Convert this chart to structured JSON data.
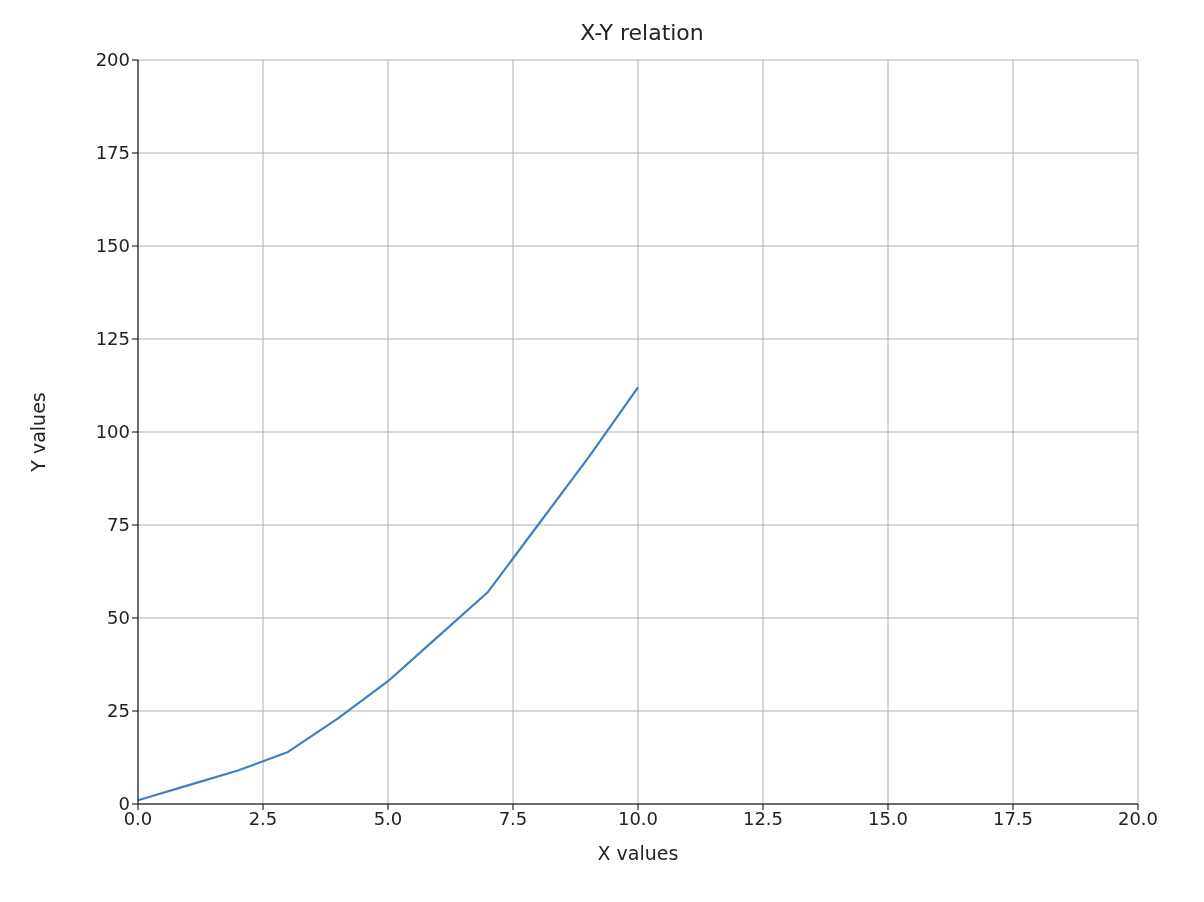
{
  "chart_data": {
    "type": "line",
    "title": "X-Y relation",
    "xlabel": "X values",
    "ylabel": "Y values",
    "x": [
      0,
      1,
      2,
      3,
      4,
      5,
      6,
      7,
      8,
      9,
      10
    ],
    "series": [
      {
        "color": "#3f7fbf",
        "values": [
          1,
          5,
          9,
          14,
          23,
          33,
          45,
          57,
          75,
          93,
          112
        ]
      }
    ],
    "xlim": [
      0,
      20
    ],
    "xticks": [
      {
        "value": 0,
        "label": "0.0"
      },
      {
        "value": 2.5,
        "label": "2.5"
      },
      {
        "value": 5,
        "label": "5.0"
      },
      {
        "value": 7.5,
        "label": "7.5"
      },
      {
        "value": 10,
        "label": "10.0"
      },
      {
        "value": 12.5,
        "label": "12.5"
      },
      {
        "value": 15,
        "label": "15.0"
      },
      {
        "value": 17.5,
        "label": "17.5"
      },
      {
        "value": 20,
        "label": "20.0"
      }
    ],
    "ylim": [
      0,
      200
    ],
    "yticks": [
      0,
      25,
      50,
      75,
      100,
      125,
      150,
      175,
      200
    ],
    "grid": true,
    "legend": false,
    "marker": "none",
    "line_style": "solid"
  }
}
